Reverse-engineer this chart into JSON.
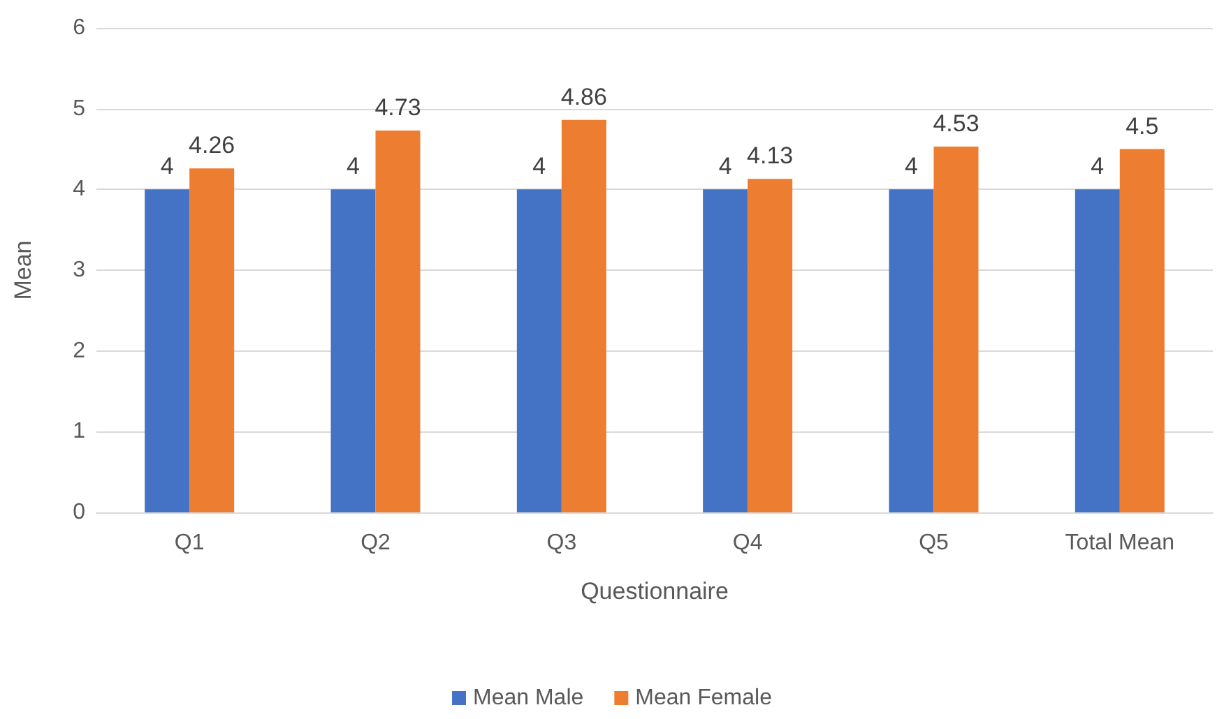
{
  "chart_data": {
    "type": "bar",
    "xlabel": "Questionnaire",
    "ylabel": "Mean",
    "categories": [
      "Q1",
      "Q2",
      "Q3",
      "Q4",
      "Q5",
      "Total Mean"
    ],
    "series": [
      {
        "name": "Mean Male",
        "color": "#4472c4",
        "values": [
          4,
          4,
          4,
          4,
          4,
          4
        ]
      },
      {
        "name": "Mean Female",
        "color": "#ed7d31",
        "values": [
          4.26,
          4.73,
          4.86,
          4.13,
          4.53,
          4.5
        ]
      }
    ],
    "ylim": [
      0,
      6
    ],
    "yticks": [
      0,
      1,
      2,
      3,
      4,
      5,
      6
    ],
    "grid": "y",
    "legend": "bottom",
    "data_labels": true
  }
}
